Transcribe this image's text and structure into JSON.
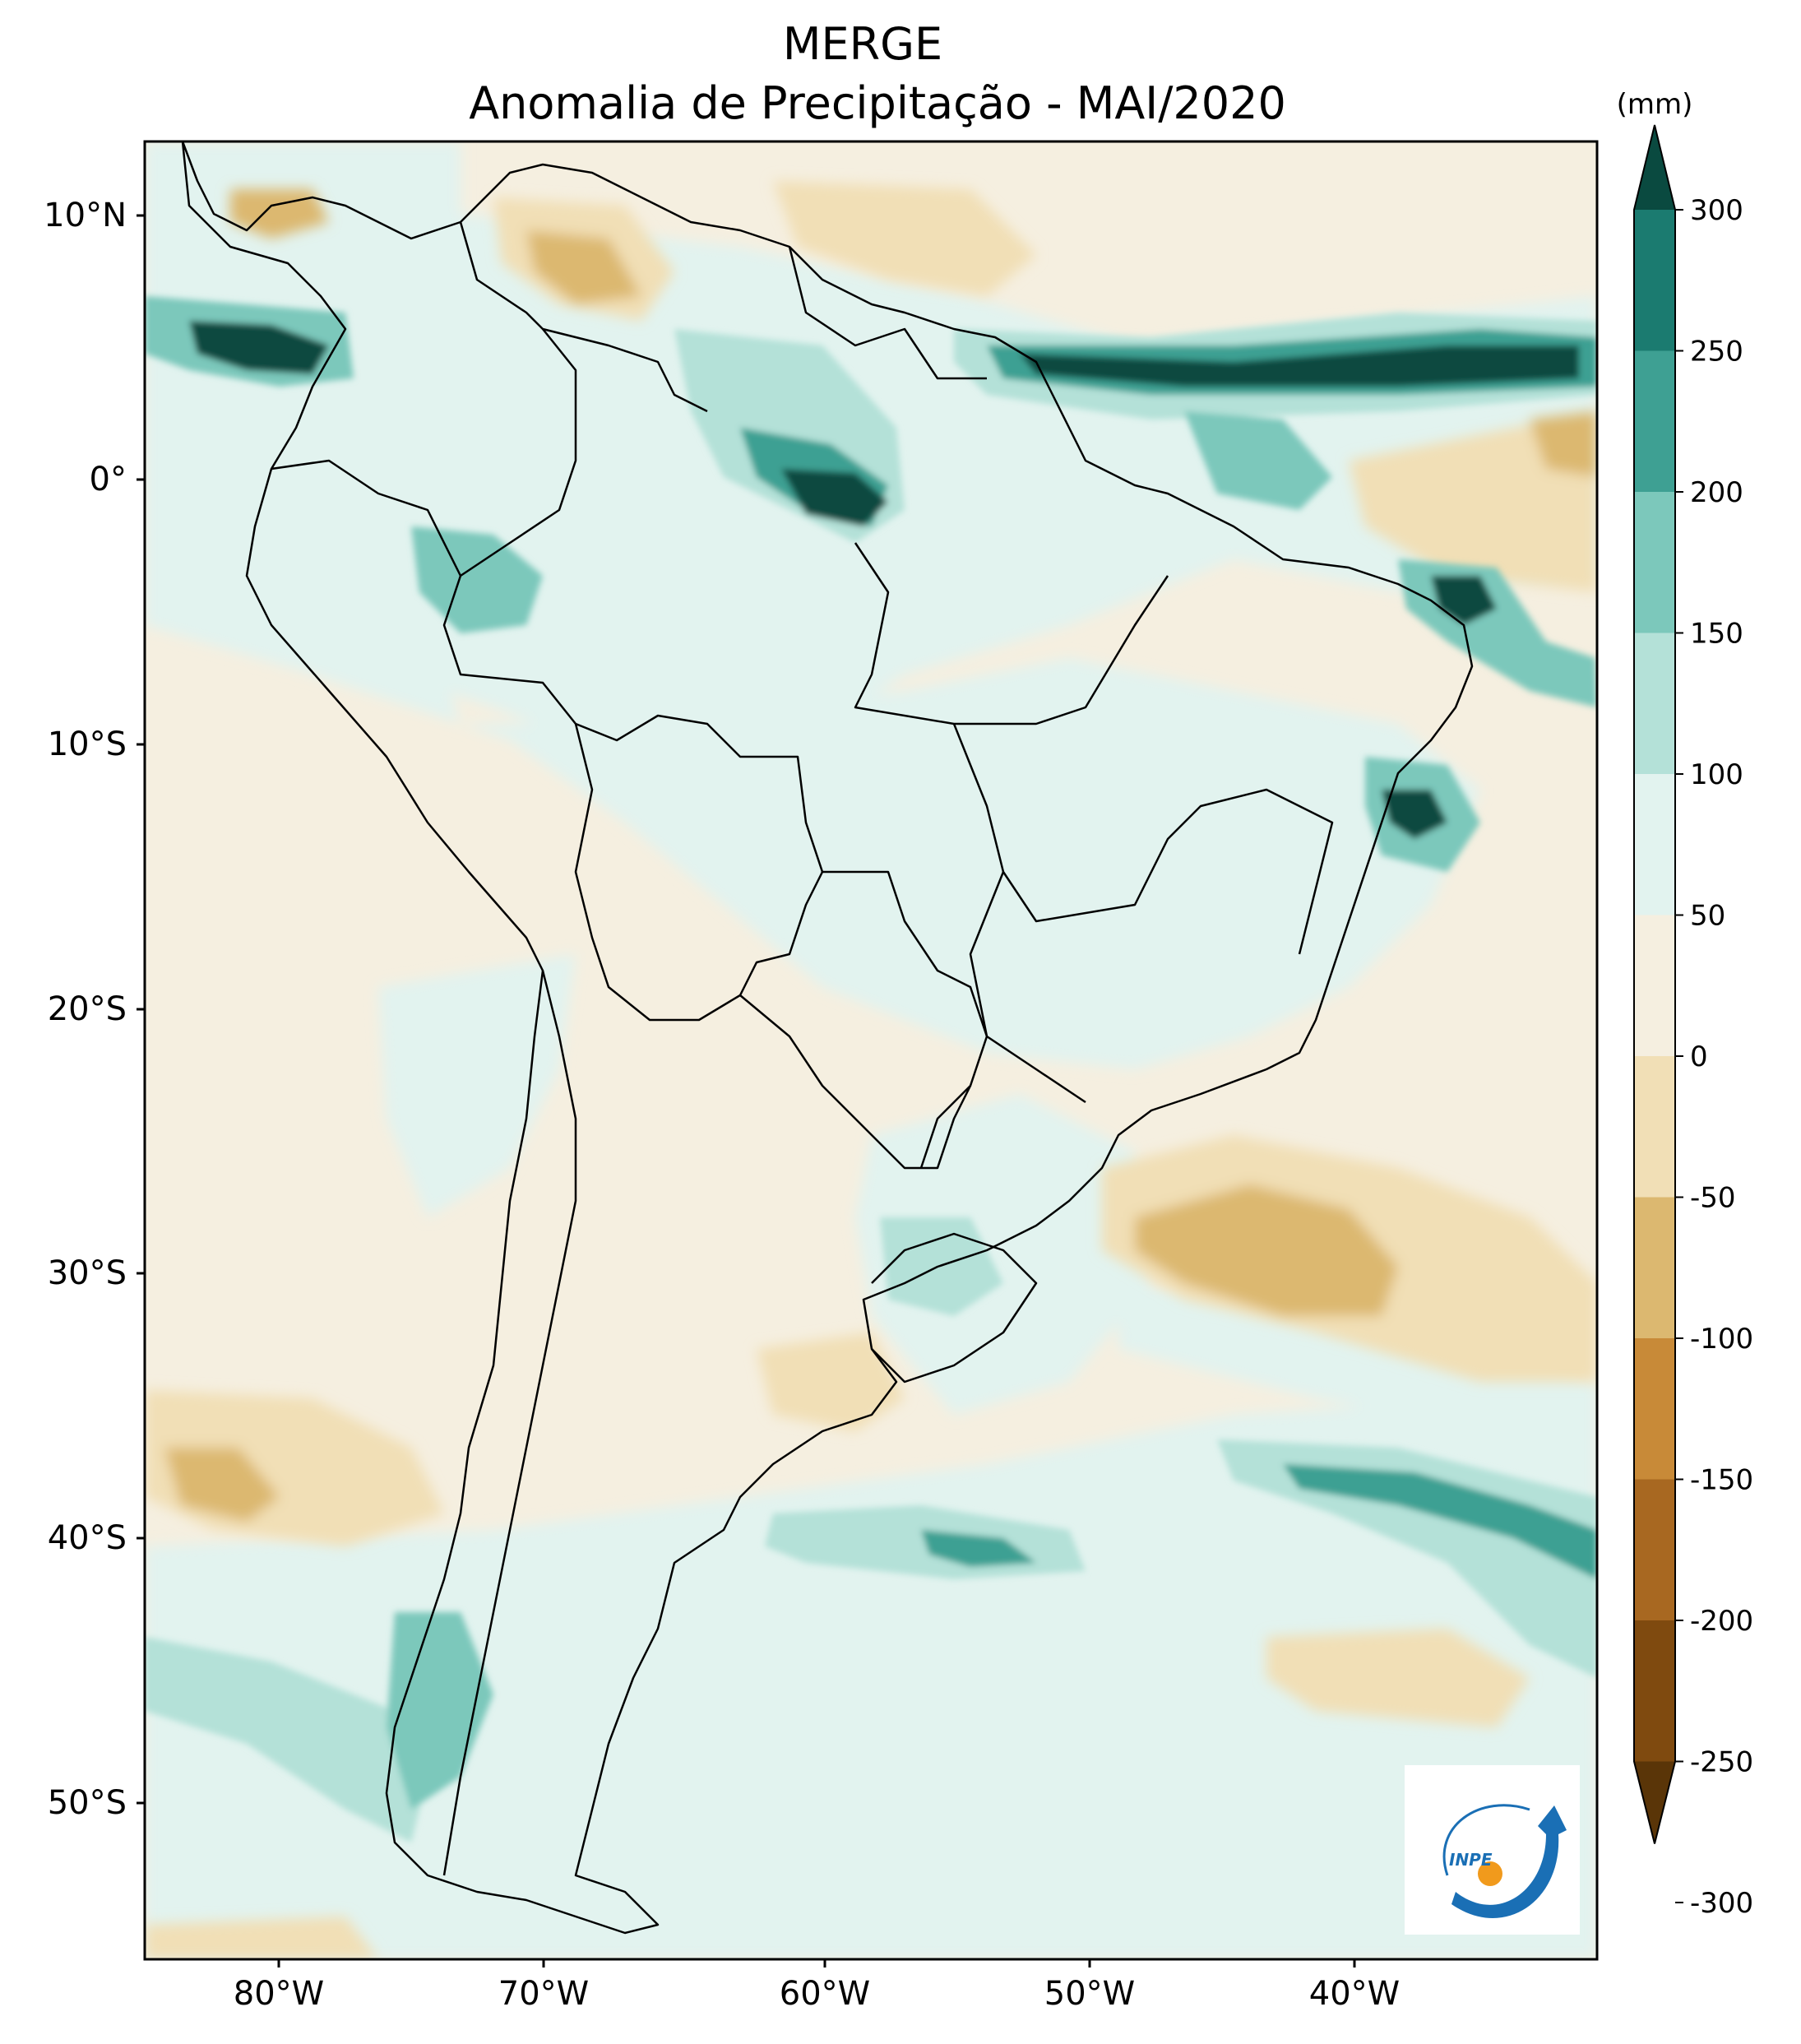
{
  "title": {
    "line1": "MERGE",
    "line2": "Anomalia de Precipitação - MAI/2020"
  },
  "map": {
    "lat_ticks": [
      "10°N",
      "0°",
      "10°S",
      "20°S",
      "30°S",
      "40°S",
      "50°S"
    ],
    "lon_ticks": [
      "80°W",
      "70°W",
      "60°W",
      "50°W",
      "40°W"
    ]
  },
  "colorbar": {
    "unit": "(mm)",
    "labels": [
      "300",
      "250",
      "200",
      "150",
      "100",
      "50",
      "0",
      "-50",
      "-100",
      "-150",
      "-200",
      "-250",
      "-300"
    ],
    "colors": [
      "#0a4a40",
      "#1b7b70",
      "#3ea093",
      "#7cc8bb",
      "#b4e1d8",
      "#e2f3ef",
      "#f5efe0",
      "#f1dfb6",
      "#dcb870",
      "#c88a38",
      "#a86821",
      "#7f4a0f",
      "#5a3508"
    ]
  },
  "logo": {
    "text": "INPE"
  },
  "colors": {
    "land_background": "#f5efe0",
    "border": "#000000"
  }
}
